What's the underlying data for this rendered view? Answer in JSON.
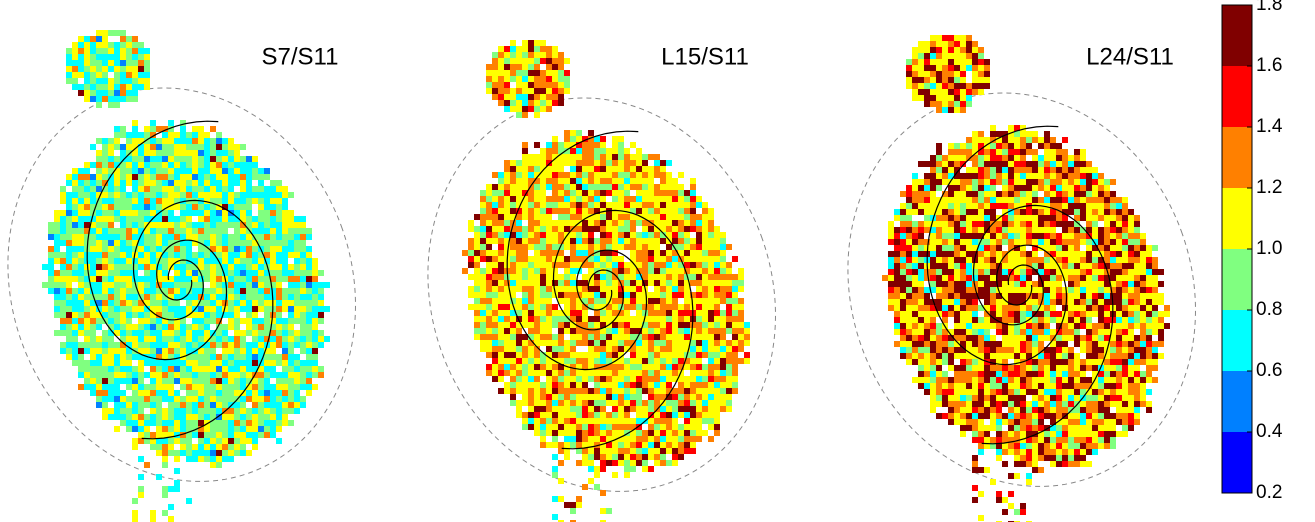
{
  "panels": [
    {
      "label": "S7/S11"
    },
    {
      "label": "L15/S11"
    },
    {
      "label": "L24/S11"
    }
  ],
  "colorbar": {
    "ticks": [
      {
        "value": 0.2,
        "label": "0.2"
      },
      {
        "value": 0.4,
        "label": "0.4"
      },
      {
        "value": 0.6,
        "label": "0.6"
      },
      {
        "value": 0.8,
        "label": "0.8"
      },
      {
        "value": 1.0,
        "label": "1.0"
      },
      {
        "value": 1.2,
        "label": "1.2"
      },
      {
        "value": 1.4,
        "label": "1.4"
      },
      {
        "value": 1.6,
        "label": "1.6"
      },
      {
        "value": 1.8,
        "label": "1.8"
      }
    ],
    "colors": [
      "#0000ff",
      "#0080ff",
      "#00ffff",
      "#80ff80",
      "#ffff00",
      "#ff8000",
      "#ff0000",
      "#800000"
    ]
  }
}
